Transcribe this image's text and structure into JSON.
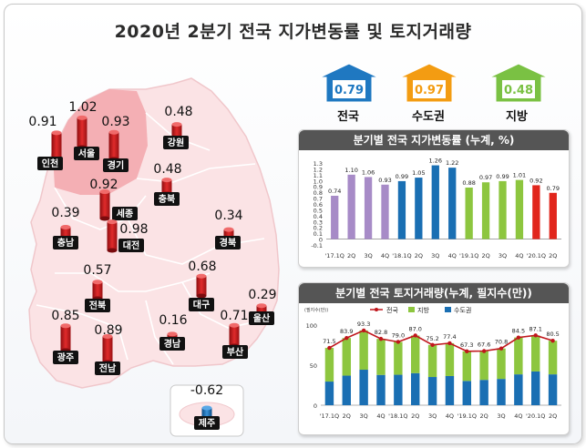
{
  "title": "2020년 2분기 전국 지가변동률 및 토지거래량",
  "summary": [
    {
      "value": "0.79",
      "label": "전국",
      "color": "#1f78c1"
    },
    {
      "value": "0.97",
      "label": "수도권",
      "color": "#f39c12"
    },
    {
      "value": "0.48",
      "label": "지방",
      "color": "#7ac143"
    }
  ],
  "chart_data": [
    {
      "type": "map",
      "regions": [
        {
          "name": "인천",
          "value": 0.91
        },
        {
          "name": "서울",
          "value": 1.02
        },
        {
          "name": "경기",
          "value": 0.93
        },
        {
          "name": "강원",
          "value": 0.48
        },
        {
          "name": "충북",
          "value": 0.48
        },
        {
          "name": "세종",
          "value": 0.92
        },
        {
          "name": "충남",
          "value": 0.39
        },
        {
          "name": "대전",
          "value": 0.98
        },
        {
          "name": "경북",
          "value": 0.34
        },
        {
          "name": "전북",
          "value": 0.57
        },
        {
          "name": "대구",
          "value": 0.68
        },
        {
          "name": "울산",
          "value": 0.29
        },
        {
          "name": "광주",
          "value": 0.85
        },
        {
          "name": "전남",
          "value": 0.89
        },
        {
          "name": "경남",
          "value": 0.16
        },
        {
          "name": "부산",
          "value": 0.71
        },
        {
          "name": "제주",
          "value": -0.62
        }
      ]
    },
    {
      "type": "bar",
      "title": "분기별 전국 지가변동률 (누계, %)",
      "categories": [
        "'17.1Q",
        "2Q",
        "3Q",
        "4Q",
        "'18.1Q",
        "2Q",
        "3Q",
        "4Q",
        "'19.1Q",
        "2Q",
        "3Q",
        "4Q",
        "'20.1Q",
        "2Q"
      ],
      "values": [
        0.74,
        1.1,
        1.06,
        0.93,
        0.99,
        1.05,
        1.26,
        1.22,
        0.88,
        0.97,
        0.99,
        1.01,
        0.92,
        0.79
      ],
      "colors": [
        "#a78bc7",
        "#a78bc7",
        "#a78bc7",
        "#a78bc7",
        "#1a6fb3",
        "#1a6fb3",
        "#1a6fb3",
        "#1a6fb3",
        "#8dc63f",
        "#8dc63f",
        "#8dc63f",
        "#8dc63f",
        "#e1261c",
        "#e1261c"
      ],
      "ylim": [
        -0.1,
        1.3
      ],
      "yticks": [
        "-0.1",
        "0.1",
        "0.3",
        "0.5",
        "0.7",
        "0.9",
        "1.1",
        "1.3"
      ]
    },
    {
      "type": "bar",
      "title": "분기별 전국 토지거래량(누계, 필지수(만))",
      "unit": "(필지수(만))",
      "categories": [
        "'17.1Q",
        "2Q",
        "3Q",
        "4Q",
        "'18.1Q",
        "2Q",
        "3Q",
        "4Q",
        "'19.1Q",
        "2Q",
        "3Q",
        "4Q",
        "'20.1Q",
        "2Q"
      ],
      "series": [
        {
          "name": "전국",
          "values": [
            71.5,
            83.9,
            93.3,
            82.8,
            79.0,
            87.0,
            75.2,
            77.4,
            67.3,
            67.6,
            70.8,
            84.5,
            87.1,
            80.5
          ],
          "color": "#c0161c"
        },
        {
          "name": "지방",
          "values": [
            42,
            47,
            49,
            45,
            41,
            47,
            40,
            41,
            37,
            36,
            38,
            46,
            45,
            42
          ],
          "color": "#8dc63f"
        },
        {
          "name": "수도권",
          "values": [
            29.5,
            36.9,
            44.3,
            37.8,
            38.0,
            40.0,
            35.2,
            36.4,
            30.3,
            31.6,
            32.8,
            38.5,
            42.1,
            38.5
          ],
          "color": "#1a6fb3"
        }
      ],
      "ylim": [
        0,
        100
      ],
      "yticks": [
        "0",
        "50",
        "100"
      ]
    }
  ]
}
